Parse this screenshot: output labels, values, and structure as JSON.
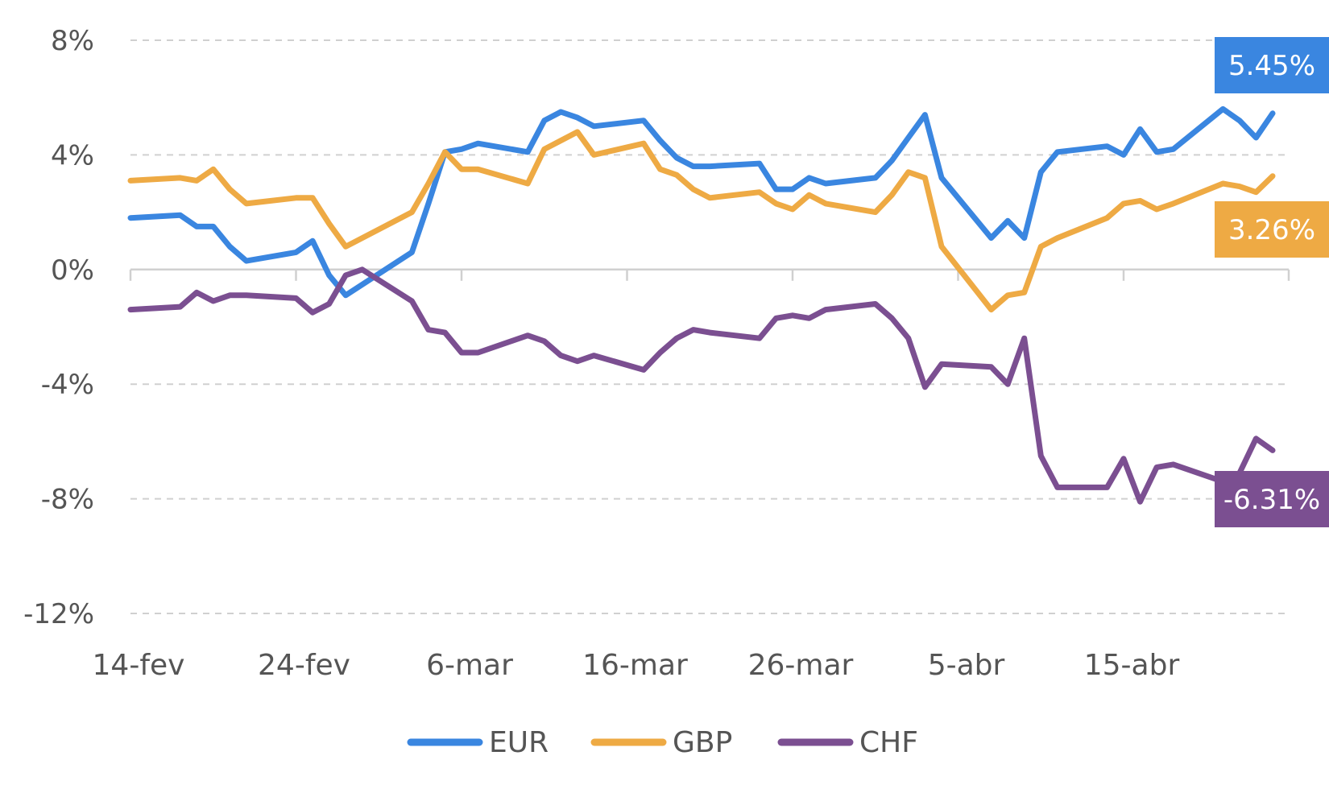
{
  "chart_data": {
    "type": "line",
    "title": "",
    "xlabel": "",
    "ylabel": "",
    "ylim": [
      -12,
      8
    ],
    "yticks": [
      8,
      4,
      0,
      -4,
      -8,
      -12
    ],
    "ytick_labels": [
      "8%",
      "4%",
      "0%",
      "-4%",
      "-8%",
      "-12%"
    ],
    "xlim": [
      "14-fev",
      "23-abr"
    ],
    "xticks": [
      {
        "date": "14-fev",
        "label": "14-fev"
      },
      {
        "date": "24-fev",
        "label": "24-fev"
      },
      {
        "date": "6-mar",
        "label": "6-mar"
      },
      {
        "date": "16-mar",
        "label": "16-mar"
      },
      {
        "date": "26-mar",
        "label": "26-mar"
      },
      {
        "date": "5-abr",
        "label": "5-abr"
      },
      {
        "date": "15-abr",
        "label": "15-abr"
      }
    ],
    "grid": "horizontal-dashed",
    "legend": "bottom",
    "series": [
      {
        "name": "EUR",
        "color": "#3a86e0",
        "end_label": "5.45%",
        "points": [
          [
            "14-fev",
            1.8
          ],
          [
            "17-fev",
            1.9
          ],
          [
            "18-fev",
            1.5
          ],
          [
            "19-fev",
            1.5
          ],
          [
            "20-fev",
            0.8
          ],
          [
            "21-fev",
            0.3
          ],
          [
            "24-fev",
            0.6
          ],
          [
            "25-fev",
            1.0
          ],
          [
            "26-fev",
            -0.2
          ],
          [
            "27-fev",
            -0.9
          ],
          [
            "3-mar",
            0.6
          ],
          [
            "4-mar",
            2.3
          ],
          [
            "5-mar",
            4.1
          ],
          [
            "6-mar",
            4.2
          ],
          [
            "7-mar",
            4.4
          ],
          [
            "10-mar",
            4.1
          ],
          [
            "11-mar",
            5.2
          ],
          [
            "12-mar",
            5.5
          ],
          [
            "13-mar",
            5.3
          ],
          [
            "14-mar",
            5.0
          ],
          [
            "17-mar",
            5.2
          ],
          [
            "18-mar",
            4.5
          ],
          [
            "19-mar",
            3.9
          ],
          [
            "20-mar",
            3.6
          ],
          [
            "21-mar",
            3.6
          ],
          [
            "24-mar",
            3.7
          ],
          [
            "25-mar",
            2.8
          ],
          [
            "26-mar",
            2.8
          ],
          [
            "27-mar",
            3.2
          ],
          [
            "28-mar",
            3.0
          ],
          [
            "31-mar",
            3.2
          ],
          [
            "1-abr",
            3.8
          ],
          [
            "2-abr",
            4.6
          ],
          [
            "3-abr",
            5.4
          ],
          [
            "4-abr",
            3.2
          ],
          [
            "7-abr",
            1.1
          ],
          [
            "8-abr",
            1.7
          ],
          [
            "9-abr",
            1.1
          ],
          [
            "10-abr",
            3.4
          ],
          [
            "11-abr",
            4.1
          ],
          [
            "14-abr",
            4.3
          ],
          [
            "15-abr",
            4.0
          ],
          [
            "16-abr",
            4.9
          ],
          [
            "17-abr",
            4.1
          ],
          [
            "18-abr",
            4.2
          ],
          [
            "21-abr",
            5.6
          ],
          [
            "22-abr",
            5.2
          ],
          [
            "23-abr",
            4.6
          ],
          [
            "24-abr",
            5.45
          ]
        ]
      },
      {
        "name": "GBP",
        "color": "#eeaa44",
        "end_label": "3.26%",
        "points": [
          [
            "14-fev",
            3.1
          ],
          [
            "17-fev",
            3.2
          ],
          [
            "18-fev",
            3.1
          ],
          [
            "19-fev",
            3.5
          ],
          [
            "20-fev",
            2.8
          ],
          [
            "21-fev",
            2.3
          ],
          [
            "24-fev",
            2.5
          ],
          [
            "25-fev",
            2.5
          ],
          [
            "26-fev",
            1.6
          ],
          [
            "27-fev",
            0.8
          ],
          [
            "3-mar",
            2.0
          ],
          [
            "4-mar",
            3.0
          ],
          [
            "5-mar",
            4.1
          ],
          [
            "6-mar",
            3.5
          ],
          [
            "7-mar",
            3.5
          ],
          [
            "10-mar",
            3.0
          ],
          [
            "11-mar",
            4.2
          ],
          [
            "12-mar",
            4.5
          ],
          [
            "13-mar",
            4.8
          ],
          [
            "14-mar",
            4.0
          ],
          [
            "17-mar",
            4.4
          ],
          [
            "18-mar",
            3.5
          ],
          [
            "19-mar",
            3.3
          ],
          [
            "20-mar",
            2.8
          ],
          [
            "21-mar",
            2.5
          ],
          [
            "24-mar",
            2.7
          ],
          [
            "25-mar",
            2.3
          ],
          [
            "26-mar",
            2.1
          ],
          [
            "27-mar",
            2.6
          ],
          [
            "28-mar",
            2.3
          ],
          [
            "31-mar",
            2.0
          ],
          [
            "1-abr",
            2.6
          ],
          [
            "2-abr",
            3.4
          ],
          [
            "3-abr",
            3.2
          ],
          [
            "4-abr",
            0.8
          ],
          [
            "7-abr",
            -1.4
          ],
          [
            "8-abr",
            -0.9
          ],
          [
            "9-abr",
            -0.8
          ],
          [
            "10-abr",
            0.8
          ],
          [
            "11-abr",
            1.1
          ],
          [
            "14-abr",
            1.8
          ],
          [
            "15-abr",
            2.3
          ],
          [
            "16-abr",
            2.4
          ],
          [
            "17-abr",
            2.1
          ],
          [
            "18-abr",
            2.3
          ],
          [
            "21-abr",
            3.0
          ],
          [
            "22-abr",
            2.9
          ],
          [
            "23-abr",
            2.7
          ],
          [
            "24-abr",
            3.26
          ]
        ]
      },
      {
        "name": "CHF",
        "color": "#7b4f91",
        "end_label": "-6.31%",
        "points": [
          [
            "14-fev",
            -1.4
          ],
          [
            "17-fev",
            -1.3
          ],
          [
            "18-fev",
            -0.8
          ],
          [
            "19-fev",
            -1.1
          ],
          [
            "20-fev",
            -0.9
          ],
          [
            "21-fev",
            -0.9
          ],
          [
            "24-fev",
            -1.0
          ],
          [
            "25-fev",
            -1.5
          ],
          [
            "26-fev",
            -1.2
          ],
          [
            "27-fev",
            -0.2
          ],
          [
            "28-fev",
            -0.0
          ],
          [
            "3-mar",
            -1.1
          ],
          [
            "4-mar",
            -2.1
          ],
          [
            "5-mar",
            -2.2
          ],
          [
            "6-mar",
            -2.9
          ],
          [
            "7-mar",
            -2.9
          ],
          [
            "10-mar",
            -2.3
          ],
          [
            "11-mar",
            -2.5
          ],
          [
            "12-mar",
            -3.0
          ],
          [
            "13-mar",
            -3.2
          ],
          [
            "14-mar",
            -3.0
          ],
          [
            "17-mar",
            -3.5
          ],
          [
            "18-mar",
            -2.9
          ],
          [
            "19-mar",
            -2.4
          ],
          [
            "20-mar",
            -2.1
          ],
          [
            "21-mar",
            -2.2
          ],
          [
            "24-mar",
            -2.4
          ],
          [
            "25-mar",
            -1.7
          ],
          [
            "26-mar",
            -1.6
          ],
          [
            "27-mar",
            -1.7
          ],
          [
            "28-mar",
            -1.4
          ],
          [
            "31-mar",
            -1.2
          ],
          [
            "1-abr",
            -1.7
          ],
          [
            "2-abr",
            -2.4
          ],
          [
            "3-abr",
            -4.1
          ],
          [
            "4-abr",
            -3.3
          ],
          [
            "7-abr",
            -3.4
          ],
          [
            "8-abr",
            -4.0
          ],
          [
            "9-abr",
            -2.4
          ],
          [
            "10-abr",
            -6.5
          ],
          [
            "11-abr",
            -7.6
          ],
          [
            "14-abr",
            -7.6
          ],
          [
            "15-abr",
            -6.6
          ],
          [
            "16-abr",
            -8.1
          ],
          [
            "17-abr",
            -6.9
          ],
          [
            "18-abr",
            -6.8
          ],
          [
            "21-abr",
            -7.4
          ],
          [
            "22-abr",
            -7.1
          ],
          [
            "23-abr",
            -5.9
          ],
          [
            "24-abr",
            -6.31
          ]
        ]
      }
    ]
  }
}
